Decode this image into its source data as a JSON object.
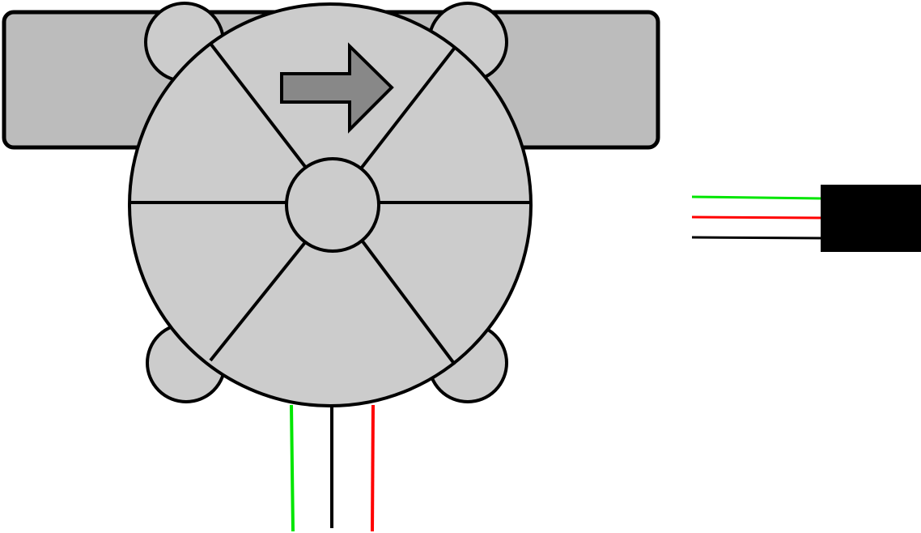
{
  "diagram": {
    "kind": "water-flow-sensor",
    "flow_direction": "right",
    "colors": {
      "background": "#ffffff",
      "outline": "#000000",
      "pipe_fill": "#bcbcbc",
      "body_fill": "#cccccc",
      "arrow_fill": "#888888",
      "connector_fill": "#000000",
      "wire_signal": "#00e600",
      "wire_power": "#ff0000",
      "wire_ground": "#000000"
    },
    "sensor_wires": [
      {
        "id": "wire-signal",
        "color_key": "wire_signal"
      },
      {
        "id": "wire-ground",
        "color_key": "wire_ground"
      },
      {
        "id": "wire-power",
        "color_key": "wire_power"
      }
    ],
    "connector_wires": [
      {
        "id": "wire-signal",
        "color_key": "wire_signal"
      },
      {
        "id": "wire-power",
        "color_key": "wire_power"
      },
      {
        "id": "wire-ground",
        "color_key": "wire_ground"
      }
    ]
  }
}
